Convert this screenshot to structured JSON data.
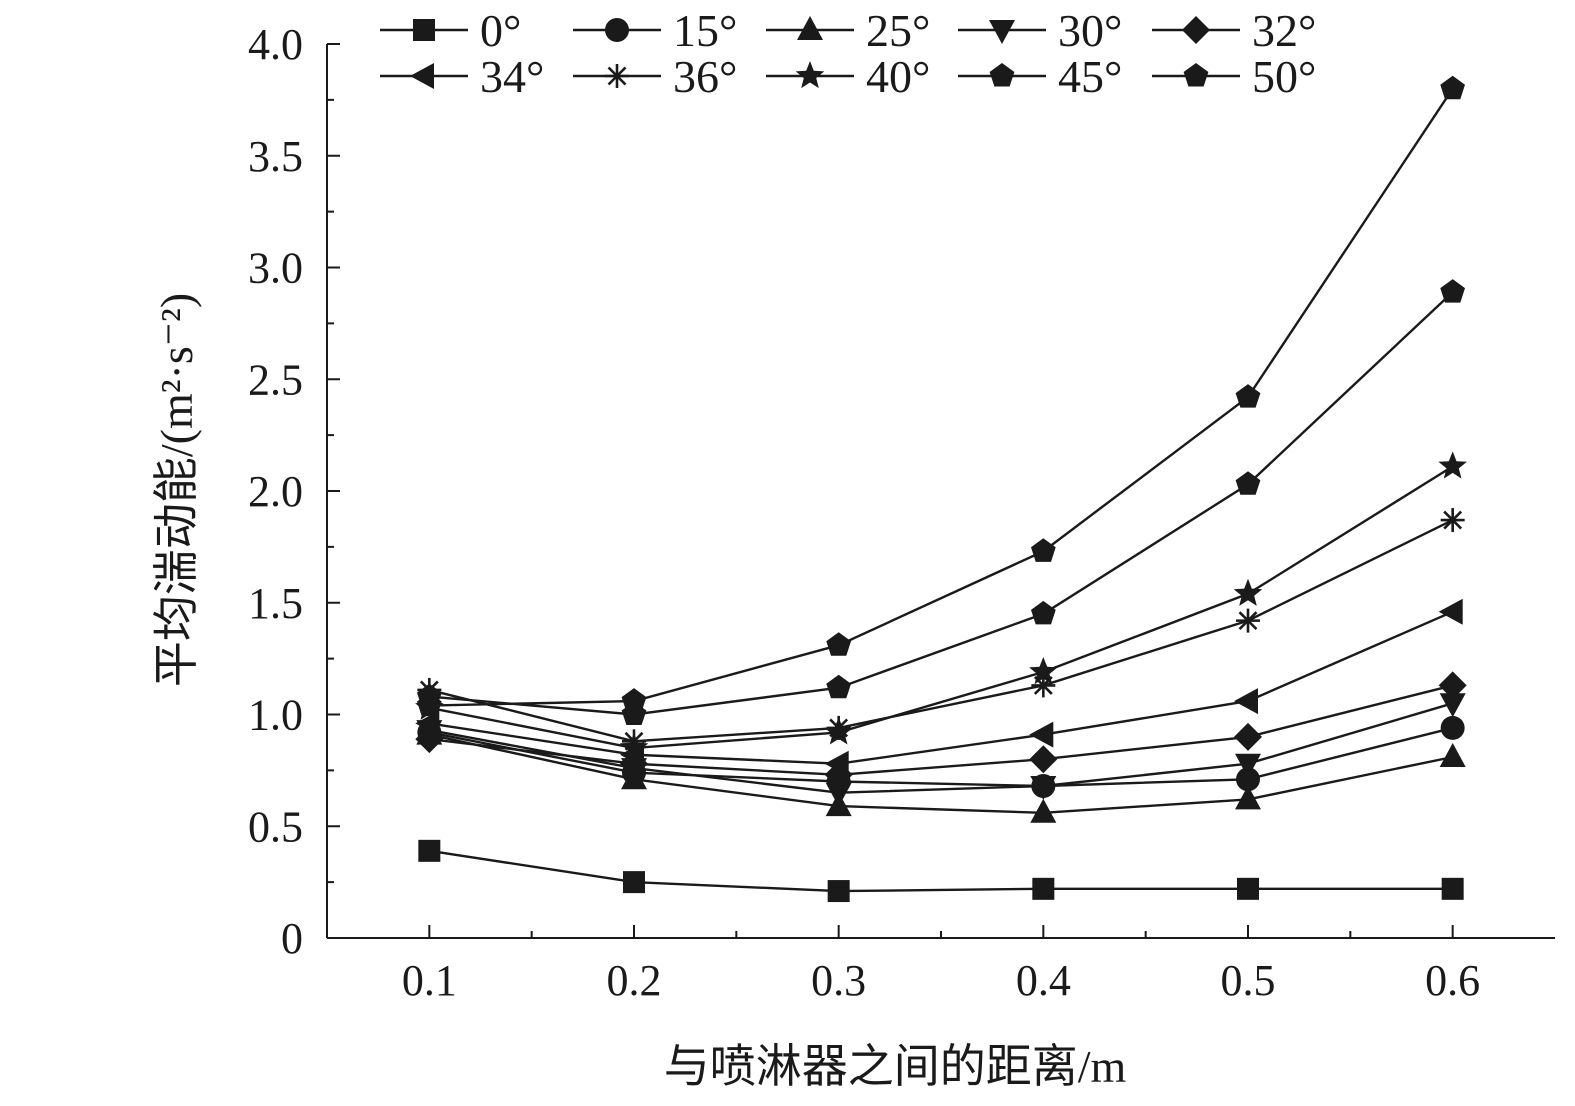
{
  "chart_data": {
    "type": "line",
    "xlabel": "与喷淋器之间的距离/m",
    "ylabel": "平均湍动能/(m²·s⁻²)",
    "x": [
      0.1,
      0.2,
      0.3,
      0.4,
      0.5,
      0.6
    ],
    "x_ticks": [
      "0.1",
      "0.2",
      "0.3",
      "0.4",
      "0.5",
      "0.6"
    ],
    "xlim": [
      0.05,
      0.65
    ],
    "ylim": [
      0,
      4.0
    ],
    "y_ticks": [
      "0",
      "0.5",
      "1.0",
      "1.5",
      "2.0",
      "2.5",
      "3.0",
      "3.5",
      "4.0"
    ],
    "legend_position": "top",
    "series": [
      {
        "name": "0°",
        "marker": "square",
        "values": [
          0.39,
          0.25,
          0.21,
          0.22,
          0.22,
          0.22
        ]
      },
      {
        "name": "15°",
        "marker": "circle",
        "values": [
          0.92,
          0.74,
          0.7,
          0.68,
          0.71,
          0.94
        ]
      },
      {
        "name": "25°",
        "marker": "triangle-up",
        "values": [
          0.91,
          0.71,
          0.59,
          0.56,
          0.62,
          0.81
        ]
      },
      {
        "name": "30°",
        "marker": "triangle-down",
        "values": [
          0.93,
          0.76,
          0.65,
          0.68,
          0.78,
          1.05
        ]
      },
      {
        "name": "32°",
        "marker": "diamond",
        "values": [
          0.89,
          0.78,
          0.73,
          0.8,
          0.9,
          1.13
        ]
      },
      {
        "name": "34°",
        "marker": "triangle-left",
        "values": [
          0.96,
          0.82,
          0.78,
          0.91,
          1.06,
          1.46
        ]
      },
      {
        "name": "36°",
        "marker": "asterisk",
        "values": [
          1.11,
          0.88,
          0.94,
          1.13,
          1.42,
          1.87
        ]
      },
      {
        "name": "40°",
        "marker": "star",
        "values": [
          1.03,
          0.85,
          0.92,
          1.19,
          1.54,
          2.11
        ]
      },
      {
        "name": "45°",
        "marker": "pentagon",
        "values": [
          1.08,
          1.0,
          1.12,
          1.45,
          2.03,
          2.89
        ]
      },
      {
        "name": "50°",
        "marker": "pentagon",
        "values": [
          1.04,
          1.06,
          1.31,
          1.73,
          2.42,
          3.8
        ]
      }
    ]
  }
}
